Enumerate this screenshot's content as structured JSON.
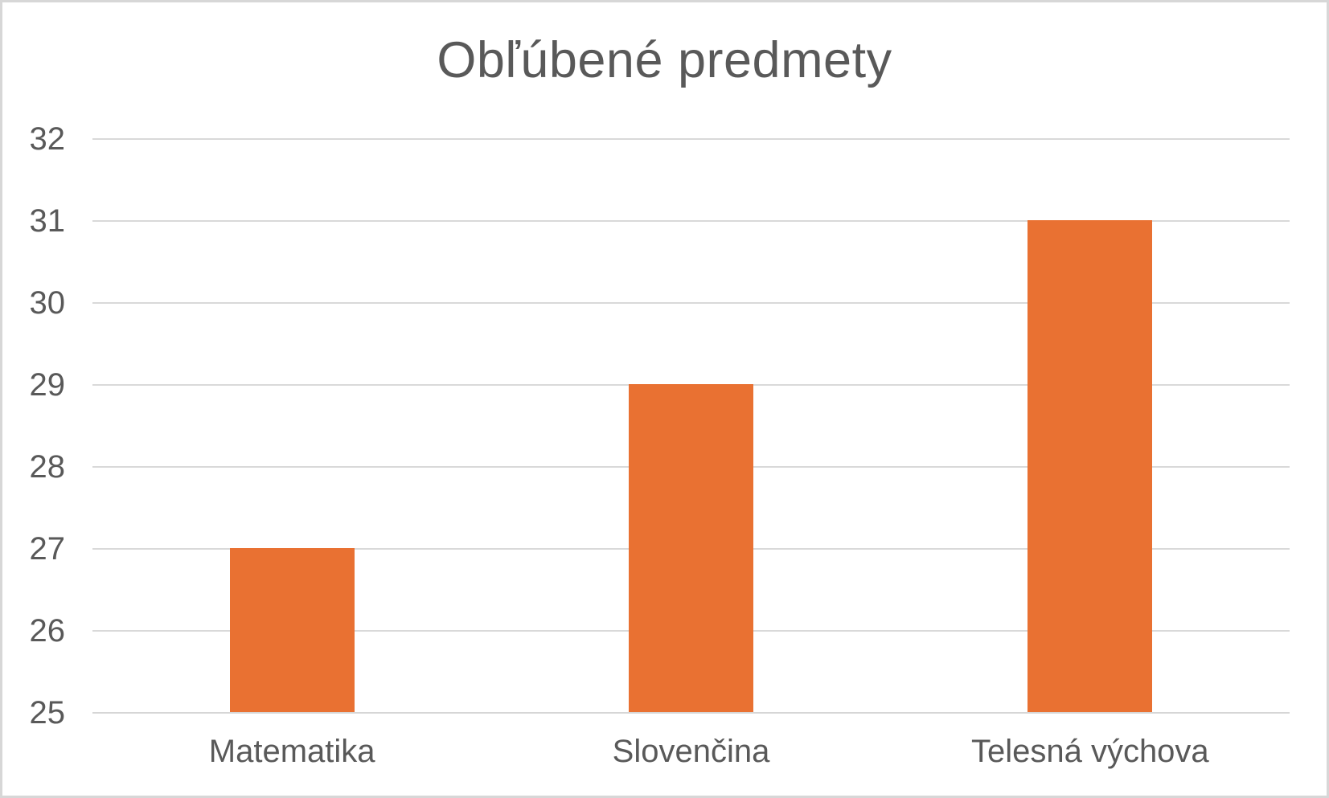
{
  "chart_data": {
    "type": "bar",
    "title": "Obľúbené predmety",
    "categories": [
      "Matematika",
      "Slovenčina",
      "Telesná výchova"
    ],
    "values": [
      27,
      29,
      31
    ],
    "xlabel": "",
    "ylabel": "",
    "ylim": [
      25,
      32
    ],
    "ytick_step": 1,
    "grid": true,
    "legend": false,
    "bar_color": "#e97132",
    "text_color": "#595959",
    "gridline_color": "#d9d9d9",
    "background_color": "#ffffff",
    "border_color": "#d7d7d7"
  }
}
